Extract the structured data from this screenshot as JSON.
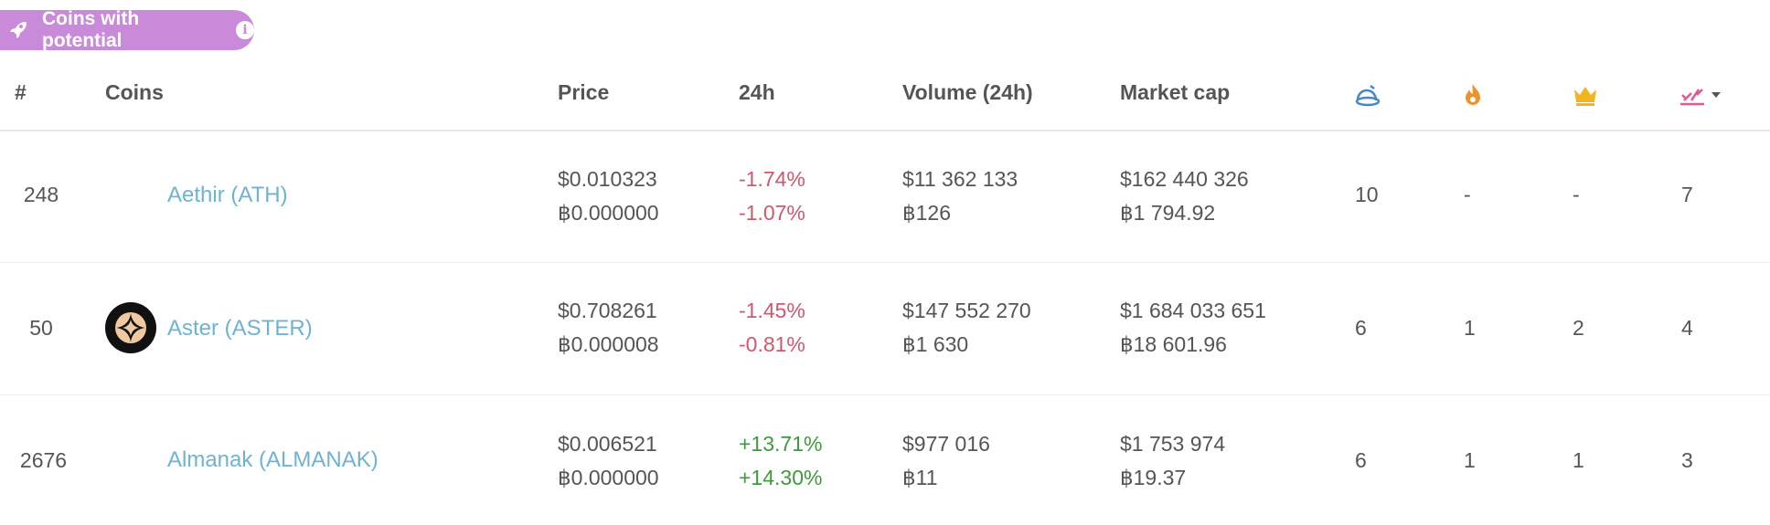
{
  "badge": {
    "label": "Coins with potential",
    "info_glyph": "i",
    "icon": "rocket-icon",
    "color": "#c98bd9"
  },
  "header": {
    "rank": "#",
    "coins": "Coins",
    "price": "Price",
    "change": "24h",
    "volume": "Volume (24h)",
    "market_cap": "Market cap",
    "icons": [
      "hat-icon",
      "flame-icon",
      "crown-icon",
      "spark-icon"
    ]
  },
  "rows": [
    {
      "rank": "248",
      "name": "Aethir (ATH)",
      "price_usd": "$0.010323",
      "price_btc": "฿0.000000",
      "change_usd": "-1.74%",
      "change_btc": "-1.07%",
      "volume_usd": "$11 362 133",
      "volume_btc": "฿126",
      "mcap_usd": "$162 440 326",
      "mcap_btc": "฿1 794.92",
      "c1": "10",
      "c2": "-",
      "c3": "-",
      "c4": "7"
    },
    {
      "rank": "50",
      "name": "Aster (ASTER)",
      "price_usd": "$0.708261",
      "price_btc": "฿0.000008",
      "change_usd": "-1.45%",
      "change_btc": "-0.81%",
      "volume_usd": "$147 552 270",
      "volume_btc": "฿1 630",
      "mcap_usd": "$1 684 033 651",
      "mcap_btc": "฿18 601.96",
      "c1": "6",
      "c2": "1",
      "c3": "2",
      "c4": "4"
    },
    {
      "rank": "2676",
      "name": "Almanak (ALMANAK)",
      "price_usd": "$0.006521",
      "price_btc": "฿0.000000",
      "change_usd": "+13.71%",
      "change_btc": "+14.30%",
      "volume_usd": "$977 016",
      "volume_btc": "฿11",
      "mcap_usd": "$1 753 974",
      "mcap_btc": "฿19.37",
      "c1": "6",
      "c2": "1",
      "c3": "1",
      "c4": "3"
    }
  ],
  "colors": {
    "link": "#6fb3d2",
    "negative": "#d0586a",
    "positive": "#3d9b3d"
  }
}
